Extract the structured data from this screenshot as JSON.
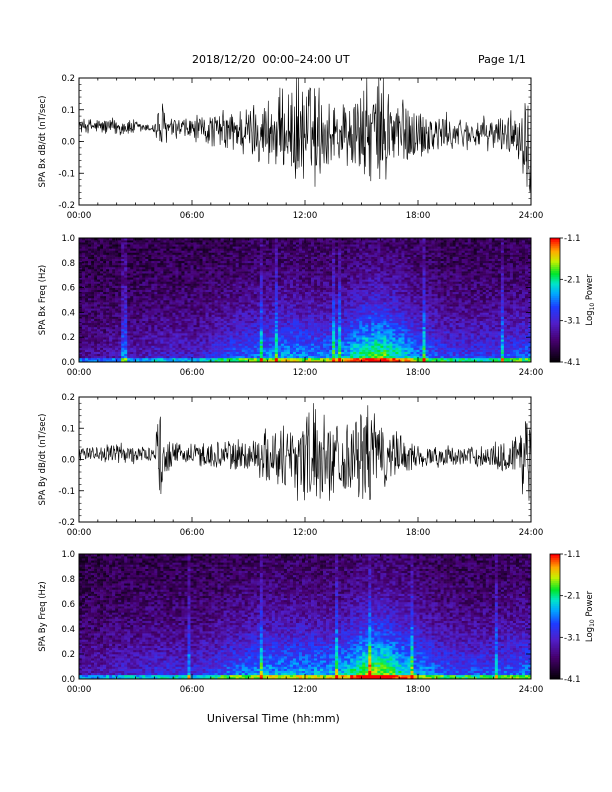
{
  "header": {
    "title": "2018/12/20  00:00–24:00 UT",
    "page": "Page 1/1"
  },
  "xlabel": "Universal Time (hh:mm)",
  "chart_data": [
    {
      "type": "line",
      "ylabel": "SPA Bx dB/dt (nT/sec)",
      "xlim": [
        0,
        24
      ],
      "ylim": [
        -0.2,
        0.2
      ],
      "x_ticks": [
        "00:00",
        "06:00",
        "12:00",
        "18:00",
        "24:00"
      ],
      "y_ticks": [
        "0.2",
        "0.1",
        "0.0",
        "-0.1",
        "-0.2"
      ],
      "envelope": {
        "hours": [
          0,
          1,
          2,
          3,
          3.6,
          4,
          4.2,
          4.4,
          4.7,
          5,
          6,
          7,
          8,
          9,
          10,
          10.5,
          11,
          11.5,
          12,
          12.5,
          13,
          13.5,
          14,
          14.5,
          15,
          15.5,
          16,
          16.5,
          17,
          17.5,
          18,
          19,
          20,
          21,
          22,
          23,
          23.5,
          24
        ],
        "amplitude": [
          0.025,
          0.03,
          0.035,
          0.03,
          0.015,
          0.02,
          0.09,
          0.1,
          0.05,
          0.04,
          0.05,
          0.06,
          0.08,
          0.1,
          0.13,
          0.14,
          0.16,
          0.2,
          0.22,
          0.2,
          0.15,
          0.13,
          0.12,
          0.15,
          0.18,
          0.2,
          0.21,
          0.19,
          0.15,
          0.12,
          0.1,
          0.08,
          0.06,
          0.055,
          0.06,
          0.08,
          0.12,
          0.25
        ],
        "baseline": 0.05
      }
    },
    {
      "type": "heatmap",
      "ylabel": "SPA Bx Freq (Hz)",
      "xlim": [
        0,
        24
      ],
      "ylim": [
        0,
        1
      ],
      "x_ticks": [
        "00:00",
        "06:00",
        "12:00",
        "18:00",
        "24:00"
      ],
      "y_ticks": [
        "1.0",
        "0.8",
        "0.6",
        "0.4",
        "0.2",
        "0.0"
      ],
      "colorbar": {
        "label": "Log10 Power",
        "label_main": "Log",
        "label_sub": "10",
        "label_tail": " Power",
        "ticks": [
          "-1.1",
          "-2.1",
          "-3.1",
          "-4.1"
        ],
        "range": [
          -4.1,
          -1.1
        ]
      },
      "activity_hours": [
        0,
        1,
        2,
        3,
        4,
        5,
        6,
        7,
        8,
        9,
        10,
        11,
        12,
        13,
        14,
        15,
        16,
        17,
        18,
        19,
        20,
        21,
        22,
        23,
        24
      ],
      "activity_level": [
        0.2,
        0.2,
        0.25,
        0.25,
        0.3,
        0.3,
        0.3,
        0.35,
        0.45,
        0.5,
        0.55,
        0.6,
        0.55,
        0.55,
        0.6,
        0.8,
        0.85,
        0.7,
        0.55,
        0.45,
        0.4,
        0.4,
        0.4,
        0.45,
        0.5
      ]
    },
    {
      "type": "line",
      "ylabel": "SPA By dB/dt (nT/sec)",
      "xlim": [
        0,
        24
      ],
      "ylim": [
        -0.2,
        0.2
      ],
      "x_ticks": [
        "00:00",
        "06:00",
        "12:00",
        "18:00",
        "24:00"
      ],
      "y_ticks": [
        "0.2",
        "0.1",
        "0.0",
        "-0.1",
        "-0.2"
      ],
      "envelope": {
        "hours": [
          0,
          1,
          2,
          3,
          3.6,
          4,
          4.2,
          4.4,
          4.7,
          5,
          6,
          7,
          8,
          9,
          10,
          10.5,
          11,
          11.5,
          12,
          12.5,
          13,
          13.5,
          14,
          14.5,
          15,
          15.5,
          16,
          16.5,
          17,
          17.5,
          18,
          19,
          20,
          21,
          22,
          23,
          23.5,
          24
        ],
        "amplitude": [
          0.025,
          0.03,
          0.04,
          0.045,
          0.02,
          0.03,
          0.18,
          0.2,
          0.06,
          0.04,
          0.045,
          0.05,
          0.06,
          0.07,
          0.1,
          0.12,
          0.14,
          0.16,
          0.18,
          0.19,
          0.16,
          0.14,
          0.13,
          0.15,
          0.17,
          0.18,
          0.16,
          0.12,
          0.08,
          0.06,
          0.05,
          0.04,
          0.035,
          0.04,
          0.05,
          0.08,
          0.12,
          0.25
        ],
        "baseline": 0.02
      }
    },
    {
      "type": "heatmap",
      "ylabel": "SPA By Freq (Hz)",
      "xlim": [
        0,
        24
      ],
      "ylim": [
        0,
        1
      ],
      "x_ticks": [
        "00:00",
        "06:00",
        "12:00",
        "18:00",
        "24:00"
      ],
      "y_ticks": [
        "1.0",
        "0.8",
        "0.6",
        "0.4",
        "0.2",
        "0.0"
      ],
      "colorbar": {
        "label": "Log10 Power",
        "label_main": "Log",
        "label_sub": "10",
        "label_tail": " Power",
        "ticks": [
          "-1.1",
          "-2.1",
          "-3.1",
          "-4.1"
        ],
        "range": [
          -4.1,
          -1.1
        ]
      },
      "activity_hours": [
        0,
        1,
        2,
        3,
        4,
        5,
        6,
        7,
        8,
        9,
        10,
        11,
        12,
        13,
        14,
        15,
        16,
        17,
        18,
        19,
        20,
        21,
        22,
        23,
        24
      ],
      "activity_level": [
        0.25,
        0.25,
        0.3,
        0.3,
        0.35,
        0.35,
        0.35,
        0.4,
        0.5,
        0.55,
        0.6,
        0.6,
        0.6,
        0.6,
        0.65,
        0.85,
        0.9,
        0.75,
        0.6,
        0.5,
        0.45,
        0.45,
        0.45,
        0.5,
        0.55
      ]
    }
  ]
}
